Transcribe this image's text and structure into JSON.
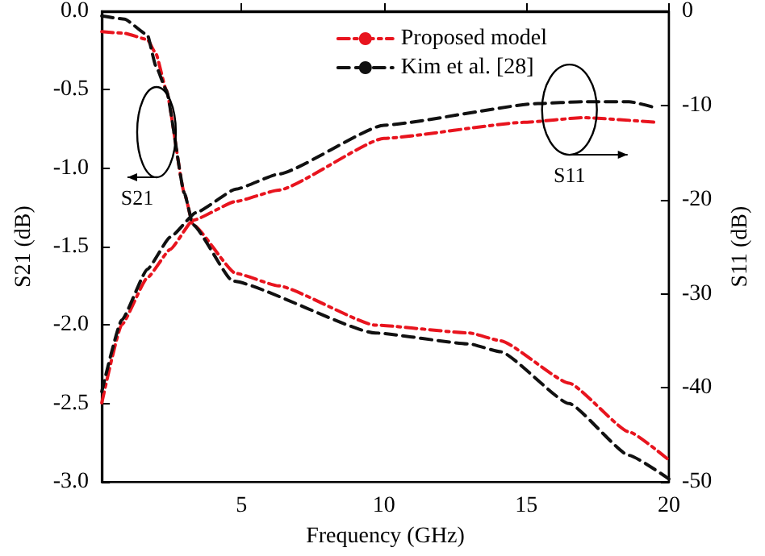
{
  "chart_data": {
    "type": "line",
    "xlabel": "Frequency (GHz)",
    "ylabel": "S21 (dB)",
    "y2label": "S11 (dB)",
    "xlim": [
      0.1,
      20
    ],
    "xticks": [
      5,
      10,
      15,
      20
    ],
    "ylim": [
      -3.0,
      0.0
    ],
    "yticks": [
      {
        "value": -3,
        "label": "-3.0"
      },
      {
        "value": -2.5,
        "label": "-2.5"
      },
      {
        "value": -2,
        "label": "-2.0"
      },
      {
        "value": -1.5,
        "label": "-1.5"
      },
      {
        "value": -1,
        "label": "-1.0"
      },
      {
        "value": -0.5,
        "label": "-0.5"
      },
      {
        "value": 0,
        "label": "0.0"
      }
    ],
    "y2lim": [
      -50,
      0
    ],
    "y2ticks": [
      -50,
      -40,
      -30,
      -20,
      -10,
      0
    ],
    "legend": "top right",
    "grid": false,
    "marker": "none",
    "series": [
      {
        "name": "Proposed model",
        "color": "#e8141e",
        "line_style": "dashdot",
        "x": [
          0.1,
          0.9,
          1.7,
          2.0,
          2.36,
          3.0,
          3.3,
          4.8,
          6.3,
          9.7,
          13.0,
          14.1,
          16.5,
          18.6,
          20
        ],
        "values": [
          -0.13,
          -0.14,
          -0.18,
          -0.27,
          -0.5,
          -1.16,
          -1.36,
          -1.67,
          -1.75,
          -2.0,
          -2.05,
          -2.1,
          -2.37,
          -2.68,
          -2.86
        ]
      },
      {
        "name": "Kim et al. [28]",
        "color": "#111111",
        "line_style": "dashed",
        "x": [
          0.1,
          0.9,
          1.7,
          2.0,
          2.36,
          3.0,
          3.3,
          4.7,
          9.7,
          13.0,
          14.1,
          16.5,
          18.6,
          20
        ],
        "values": [
          -0.03,
          -0.05,
          -0.15,
          -0.35,
          -0.5,
          -1.16,
          -1.36,
          -1.72,
          -2.05,
          -2.12,
          -2.17,
          -2.5,
          -2.83,
          -2.98
        ]
      },
      {
        "color": "#e8141e",
        "line_style": "dashdot",
        "axis": "y2",
        "x": [
          0.1,
          0.8,
          1.7,
          2.5,
          3.3,
          4.8,
          6.3,
          10.0,
          14.9,
          17.0,
          19.6
        ],
        "values": [
          -41.6,
          -33.3,
          -28.3,
          -25.3,
          -22.2,
          -20.2,
          -19.0,
          -13.5,
          -11.8,
          -11.3,
          -11.8
        ]
      },
      {
        "color": "#111111",
        "line_style": "dashed",
        "axis": "y2",
        "x": [
          0.1,
          0.8,
          1.7,
          2.5,
          3.4,
          4.8,
          6.3,
          10.0,
          15.4,
          17.0,
          18.6,
          19.6
        ],
        "values": [
          -40.4,
          -32.8,
          -27.4,
          -24.0,
          -21.4,
          -18.9,
          -17.3,
          -12.1,
          -9.8,
          -9.6,
          -9.6,
          -10.3
        ]
      }
    ],
    "annotations": [
      "S21",
      "S11"
    ]
  }
}
